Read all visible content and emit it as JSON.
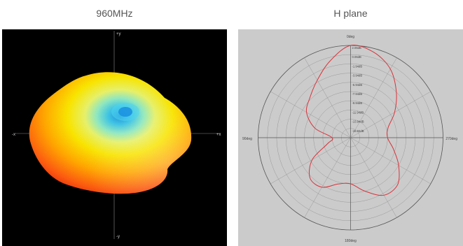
{
  "captions": {
    "left": "960MHz",
    "right": "H plane"
  },
  "pattern3d": {
    "axis_labels": {
      "top": "+y",
      "bottom": "-y",
      "left": "-x",
      "right": "+x"
    }
  },
  "polar": {
    "angle_labels": {
      "top": "0deg",
      "right": "270deg",
      "bottom": "180deg",
      "left": "90deg"
    },
    "ring_labels": [
      "2.06dB",
      "0.06dB",
      "-1.94dB",
      "-3.94dB",
      "-5.94dB",
      "-7.94dB",
      "-9.94dB",
      "-11.94dB",
      "-13.94dB",
      "-15.94dB"
    ],
    "trace_color": "#d9333a",
    "pattern": [
      {
        "angle": 0,
        "r": 1.0
      },
      {
        "angle": 15,
        "r": 0.86
      },
      {
        "angle": 30,
        "r": 0.72
      },
      {
        "angle": 45,
        "r": 0.62
      },
      {
        "angle": 60,
        "r": 0.55
      },
      {
        "angle": 75,
        "r": 0.4
      },
      {
        "angle": 90,
        "r": 0.2
      },
      {
        "angle": 105,
        "r": 0.26
      },
      {
        "angle": 120,
        "r": 0.48
      },
      {
        "angle": 135,
        "r": 0.62
      },
      {
        "angle": 150,
        "r": 0.62
      },
      {
        "angle": 165,
        "r": 0.52
      },
      {
        "angle": 180,
        "r": 0.5
      },
      {
        "angle": 195,
        "r": 0.6
      },
      {
        "angle": 210,
        "r": 0.72
      },
      {
        "angle": 225,
        "r": 0.72
      },
      {
        "angle": 240,
        "r": 0.6
      },
      {
        "angle": 255,
        "r": 0.48
      },
      {
        "angle": 270,
        "r": 0.4
      },
      {
        "angle": 285,
        "r": 0.42
      },
      {
        "angle": 300,
        "r": 0.55
      },
      {
        "angle": 315,
        "r": 0.7
      },
      {
        "angle": 330,
        "r": 0.86
      },
      {
        "angle": 345,
        "r": 0.96
      }
    ]
  }
}
